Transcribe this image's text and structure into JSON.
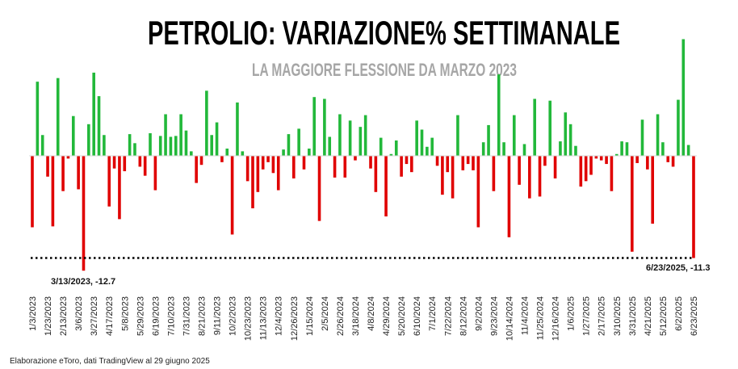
{
  "chart_data": {
    "type": "bar",
    "title": "PETROLIO: VARIAZIONE% SETTIMANALE",
    "subtitle": "LA MAGGIORE FLESSIONE DA MARZO 2023",
    "xlabel": "",
    "ylabel": "",
    "frequency": "weekly",
    "tick_labels": [
      "1/3/2023",
      "1/23/2023",
      "2/13/2023",
      "3/6/2023",
      "3/27/2023",
      "4/17/2023",
      "5/8/2023",
      "5/29/2023",
      "6/19/2023",
      "7/10/2023",
      "7/31/2023",
      "8/21/2023",
      "9/11/2023",
      "10/2/2023",
      "10/23/2023",
      "11/13/2023",
      "12/4/2023",
      "12/26/2023",
      "1/15/2024",
      "2/5/2024",
      "2/26/2024",
      "3/18/2024",
      "4/8/2024",
      "4/29/2024",
      "5/20/2024",
      "6/10/2024",
      "7/1/2024",
      "7/22/2024",
      "8/12/2024",
      "9/2/2024",
      "9/23/2024",
      "10/14/2024",
      "11/4/2024",
      "11/25/2024",
      "12/16/2024",
      "1/6/2025",
      "1/27/2025",
      "2/17/2025",
      "3/10/2025",
      "3/31/2025",
      "4/21/2025",
      "5/12/2025",
      "6/2/2025",
      "6/23/2025"
    ],
    "tick_every": 3,
    "values": [
      -7.9,
      8.2,
      2.3,
      -2.3,
      -7.8,
      8.6,
      -3.9,
      -0.3,
      4.4,
      -3.7,
      -12.7,
      3.5,
      9.2,
      6.6,
      2.3,
      -5.6,
      -1.4,
      -7.0,
      -1.7,
      2.4,
      1.4,
      -1.2,
      -2.2,
      2.5,
      -3.8,
      2.2,
      4.6,
      2.1,
      2.2,
      4.6,
      2.8,
      0.5,
      -3.0,
      -1.0,
      7.2,
      2.3,
      3.7,
      -0.7,
      0.8,
      -8.7,
      5.9,
      0.5,
      -2.8,
      -5.8,
      -4.0,
      -1.5,
      -0.7,
      -1.9,
      -3.8,
      0.7,
      2.4,
      -2.5,
      3.0,
      -1.5,
      0.8,
      6.5,
      -7.2,
      6.3,
      2.1,
      -2.4,
      4.6,
      -2.4,
      3.9,
      -0.5,
      3.2,
      4.5,
      -1.4,
      -4.0,
      2.0,
      -6.7,
      0.2,
      1.7,
      -2.3,
      -0.9,
      -1.8,
      3.9,
      2.9,
      1.0,
      2.0,
      -1.1,
      -4.3,
      -1.8,
      -4.7,
      4.5,
      -1.6,
      -0.9,
      -1.6,
      -7.9,
      1.5,
      3.4,
      -3.9,
      9.0,
      1.5,
      -9.0,
      4.5,
      -3.2,
      1.3,
      -4.7,
      6.3,
      -4.5,
      -1.1,
      6.1,
      -2.5,
      1.6,
      4.8,
      3.5,
      1.1,
      -3.4,
      -2.8,
      -2.1,
      -0.3,
      -0.5,
      -0.9,
      -3.9,
      0.2,
      1.6,
      1.5,
      -10.6,
      -0.8,
      4.0,
      -1.5,
      -7.5,
      4.6,
      1.5,
      -0.7,
      -1.2,
      6.2,
      12.9,
      1.2,
      -11.3
    ],
    "ylim": [
      -13.5,
      13.5
    ],
    "grid": false,
    "legend": "none",
    "reference_line": -11.3,
    "annotations": [
      {
        "text": "3/13/2023, -12.7",
        "date": "3/13/2023",
        "value": -12.7
      },
      {
        "text": "6/23/2025, -11.3",
        "date": "6/23/2025",
        "value": -11.3
      }
    ],
    "colors": {
      "positive": "#22b83a",
      "negative": "#e00000",
      "reference": "#000000",
      "title": "#000000",
      "subtitle": "#a6a6a6"
    }
  },
  "footer": "Elaborazione eToro, dati TradingView al 29 giugno 2025"
}
